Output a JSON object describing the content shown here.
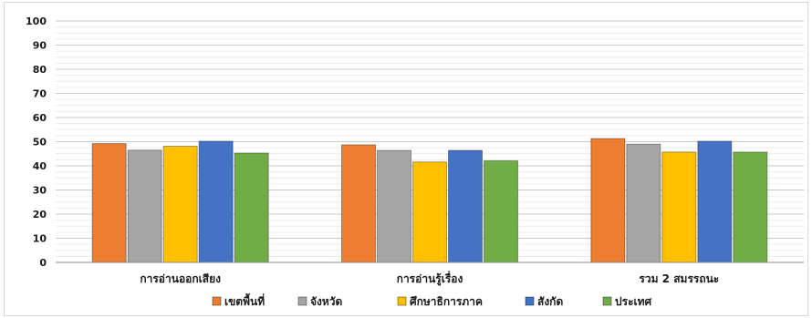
{
  "chart_data": {
    "type": "bar",
    "categories": [
      "การอ่านออกเสียง",
      "การอ่านรู้เรื่อง",
      "รวม 2 สมรรถนะ"
    ],
    "series": [
      {
        "name": "เขตพื้นที่",
        "color": "#ED7D31",
        "values": [
          49.2,
          48.7,
          51.3
        ]
      },
      {
        "name": "จังหวัด",
        "color": "#A5A5A5",
        "values": [
          46.5,
          46.4,
          49.0
        ]
      },
      {
        "name": "ศึกษาธิการภาค",
        "color": "#FFC000",
        "values": [
          48.1,
          41.6,
          45.7
        ]
      },
      {
        "name": "สังกัด",
        "color": "#4472C4",
        "values": [
          50.2,
          46.4,
          50.2
        ]
      },
      {
        "name": "ประเทศ",
        "color": "#70AD47",
        "values": [
          45.3,
          42.1,
          45.7
        ]
      }
    ],
    "yticks": [
      "0",
      "10",
      "20",
      "30",
      "40",
      "50",
      "60",
      "70",
      "80",
      "90",
      "100"
    ],
    "ylim": [
      0,
      100
    ],
    "grid": true,
    "legend_position": "bottom"
  }
}
